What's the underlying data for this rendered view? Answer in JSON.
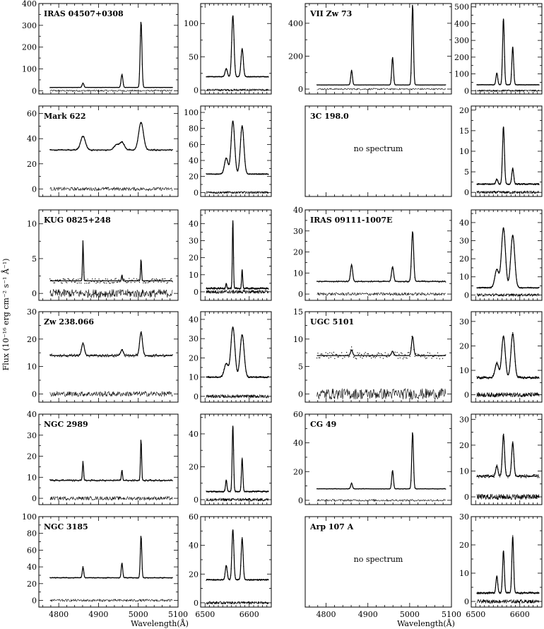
{
  "figure": {
    "ylabel": "Flux (10⁻¹⁶ erg cm⁻² s⁻¹ Å⁻¹)",
    "xlabel": "Wavelength(Å)"
  },
  "chart_data": [
    {
      "type": "line",
      "row": 0,
      "col": 0,
      "title": "IRAS 04507+0308",
      "xlim": [
        4750,
        5100
      ],
      "ylim": [
        -15,
        400
      ],
      "yticks": [
        0,
        100,
        200,
        300,
        400
      ],
      "xticks": [
        4800,
        4900,
        5000,
        5100
      ],
      "baseline": 15,
      "lines": [
        [
          4861,
          20
        ],
        [
          4959,
          60
        ],
        [
          5007,
          305
        ]
      ],
      "width": 2.2,
      "noise": 0.8
    },
    {
      "type": "line",
      "row": 0,
      "col": 1,
      "xlim": [
        6490,
        6650
      ],
      "ylim": [
        -6,
        130
      ],
      "yticks": [
        0,
        50,
        100
      ],
      "xticks": [
        6500,
        6600
      ],
      "baseline": 20,
      "lines": [
        [
          6548,
          12
        ],
        [
          6563,
          92
        ],
        [
          6584,
          42
        ]
      ],
      "width": 2.6,
      "noise": 0.5
    },
    {
      "type": "line",
      "row": 0,
      "col": 2,
      "title": "VII Zw 73",
      "xlim": [
        4750,
        5100
      ],
      "ylim": [
        -30,
        520
      ],
      "yticks": [
        0,
        200,
        400
      ],
      "xticks": [
        4800,
        4900,
        5000,
        5100
      ],
      "baseline": 25,
      "lines": [
        [
          4861,
          90
        ],
        [
          4959,
          170
        ],
        [
          5007,
          495
        ]
      ],
      "width": 2.0,
      "noise": 1.0
    },
    {
      "type": "line",
      "row": 0,
      "col": 3,
      "xlim": [
        6490,
        6650
      ],
      "ylim": [
        -20,
        520
      ],
      "yticks": [
        0,
        100,
        200,
        300,
        400,
        500
      ],
      "xticks": [
        6500,
        6600
      ],
      "baseline": 35,
      "lines": [
        [
          6548,
          70
        ],
        [
          6563,
          395
        ],
        [
          6584,
          225
        ]
      ],
      "width": 2.0,
      "noise": 1.0
    },
    {
      "type": "line",
      "row": 1,
      "col": 0,
      "title": "Mark 622",
      "xlim": [
        4750,
        5100
      ],
      "ylim": [
        -6,
        66
      ],
      "yticks": [
        0,
        20,
        40,
        60
      ],
      "xticks": [
        4800,
        4900,
        5000,
        5100
      ],
      "baseline": 31,
      "lines": [
        [
          4861,
          11
        ],
        [
          4945,
          4
        ],
        [
          4959,
          6
        ],
        [
          5007,
          22
        ]
      ],
      "width": 6,
      "noise": 0.6
    },
    {
      "type": "line",
      "row": 1,
      "col": 1,
      "xlim": [
        6490,
        6650
      ],
      "ylim": [
        -5,
        108
      ],
      "yticks": [
        0,
        20,
        40,
        60,
        80,
        100
      ],
      "xticks": [
        6500,
        6600
      ],
      "baseline": 23,
      "lines": [
        [
          6548,
          20
        ],
        [
          6563,
          66
        ],
        [
          6584,
          60
        ]
      ],
      "width": 4,
      "noise": 0.5
    },
    {
      "type": "empty",
      "row": 1,
      "col": 2,
      "title": "3C 198.0",
      "note": "no spectrum"
    },
    {
      "type": "line",
      "row": 1,
      "col": 3,
      "xlim": [
        6490,
        6650
      ],
      "ylim": [
        -1,
        21
      ],
      "yticks": [
        0,
        5,
        10,
        15,
        20
      ],
      "xticks": [
        6500,
        6600
      ],
      "baseline": 2,
      "lines": [
        [
          6548,
          1.2
        ],
        [
          6563,
          14
        ],
        [
          6584,
          3.8
        ]
      ],
      "width": 2.2,
      "noise": 0.15
    },
    {
      "type": "line",
      "row": 2,
      "col": 0,
      "title": "KUG 0825+248",
      "xlim": [
        4750,
        5100
      ],
      "ylim": [
        -1,
        12
      ],
      "yticks": [
        0,
        5,
        10
      ],
      "xticks": [
        4800,
        4900,
        5000,
        5100
      ],
      "baseline": 1.8,
      "lines": [
        [
          4861,
          5.8
        ],
        [
          4959,
          0.9
        ],
        [
          5007,
          3.2
        ]
      ],
      "width": 1.2,
      "noise": 0.35
    },
    {
      "type": "line",
      "row": 2,
      "col": 1,
      "xlim": [
        6490,
        6650
      ],
      "ylim": [
        -5,
        48
      ],
      "yticks": [
        0,
        10,
        20,
        30,
        40
      ],
      "xticks": [
        6500,
        6600
      ],
      "baseline": 2,
      "lines": [
        [
          6548,
          3
        ],
        [
          6563,
          40
        ],
        [
          6584,
          11
        ]
      ],
      "width": 1.2,
      "noise": 0.5
    },
    {
      "type": "line",
      "row": 2,
      "col": 2,
      "title": "IRAS 09111-1007E",
      "xlim": [
        4750,
        5100
      ],
      "ylim": [
        -3,
        40
      ],
      "yticks": [
        0,
        10,
        20,
        30,
        40
      ],
      "xticks": [
        4800,
        4900,
        5000,
        5100
      ],
      "baseline": 6,
      "lines": [
        [
          4861,
          8
        ],
        [
          4959,
          7
        ],
        [
          5007,
          24
        ]
      ],
      "width": 2.5,
      "noise": 0.3
    },
    {
      "type": "line",
      "row": 2,
      "col": 3,
      "xlim": [
        6490,
        6650
      ],
      "ylim": [
        -3,
        47
      ],
      "yticks": [
        0,
        10,
        20,
        30,
        40
      ],
      "xticks": [
        6500,
        6600
      ],
      "baseline": 4,
      "lines": [
        [
          6548,
          10
        ],
        [
          6563,
          33
        ],
        [
          6584,
          29
        ]
      ],
      "width": 4.5,
      "noise": 0.3
    },
    {
      "type": "line",
      "row": 3,
      "col": 0,
      "title": "Zw 238.066",
      "xlim": [
        4750,
        5100
      ],
      "ylim": [
        -3,
        30
      ],
      "yticks": [
        0,
        10,
        20,
        30
      ],
      "xticks": [
        4800,
        4900,
        5000,
        5100
      ],
      "baseline": 14,
      "lines": [
        [
          4861,
          4.5
        ],
        [
          4959,
          2
        ],
        [
          5007,
          8.5
        ]
      ],
      "width": 3.5,
      "noise": 0.5
    },
    {
      "type": "line",
      "row": 3,
      "col": 1,
      "xlim": [
        6490,
        6650
      ],
      "ylim": [
        -3,
        44
      ],
      "yticks": [
        0,
        10,
        20,
        30,
        40
      ],
      "xticks": [
        6500,
        6600
      ],
      "baseline": 10,
      "lines": [
        [
          6548,
          7
        ],
        [
          6563,
          26
        ],
        [
          6584,
          22
        ]
      ],
      "width": 4.5,
      "noise": 0.4
    },
    {
      "type": "line",
      "row": 3,
      "col": 2,
      "title": "UGC 5101",
      "xlim": [
        4750,
        5100
      ],
      "ylim": [
        -1.5,
        15
      ],
      "yticks": [
        0,
        5,
        10,
        15
      ],
      "xticks": [
        4800,
        4900,
        5000,
        5100
      ],
      "baseline": 7,
      "lines": [
        [
          4861,
          1
        ],
        [
          4959,
          0.8
        ],
        [
          5007,
          3.5
        ]
      ],
      "width": 2.5,
      "noise": 0.6
    },
    {
      "type": "line",
      "row": 3,
      "col": 3,
      "xlim": [
        6490,
        6650
      ],
      "ylim": [
        -3,
        34
      ],
      "yticks": [
        0,
        10,
        20,
        30
      ],
      "xticks": [
        6500,
        6600
      ],
      "baseline": 7,
      "lines": [
        [
          6548,
          6
        ],
        [
          6563,
          17
        ],
        [
          6584,
          18
        ]
      ],
      "width": 4,
      "noise": 0.5
    },
    {
      "type": "line",
      "row": 4,
      "col": 0,
      "title": "NGC 2989",
      "xlim": [
        4750,
        5100
      ],
      "ylim": [
        -3,
        40
      ],
      "yticks": [
        0,
        10,
        20,
        30,
        40
      ],
      "xticks": [
        4800,
        4900,
        5000,
        5100
      ],
      "baseline": 8.5,
      "lines": [
        [
          4861,
          9
        ],
        [
          4959,
          5
        ],
        [
          5007,
          20
        ]
      ],
      "width": 1.4,
      "noise": 0.4
    },
    {
      "type": "line",
      "row": 4,
      "col": 1,
      "xlim": [
        6490,
        6650
      ],
      "ylim": [
        -3,
        52
      ],
      "yticks": [
        0,
        20,
        40
      ],
      "xticks": [
        6500,
        6600
      ],
      "baseline": 5,
      "lines": [
        [
          6548,
          7
        ],
        [
          6563,
          40
        ],
        [
          6584,
          20
        ]
      ],
      "width": 1.6,
      "noise": 0.4
    },
    {
      "type": "line",
      "row": 4,
      "col": 2,
      "title": "CG 49",
      "xlim": [
        4750,
        5100
      ],
      "ylim": [
        -3,
        60
      ],
      "yticks": [
        0,
        20,
        40,
        60
      ],
      "xticks": [
        4800,
        4900,
        5000,
        5100
      ],
      "baseline": 8,
      "lines": [
        [
          4861,
          4
        ],
        [
          4959,
          13
        ],
        [
          5007,
          40
        ]
      ],
      "width": 2.0,
      "noise": 0.2
    },
    {
      "type": "line",
      "row": 4,
      "col": 3,
      "xlim": [
        6490,
        6650
      ],
      "ylim": [
        -3,
        32
      ],
      "yticks": [
        0,
        10,
        20,
        30
      ],
      "xticks": [
        6500,
        6600
      ],
      "baseline": 8,
      "lines": [
        [
          6548,
          4
        ],
        [
          6563,
          16
        ],
        [
          6584,
          13
        ]
      ],
      "width": 2.5,
      "noise": 0.6
    },
    {
      "type": "line",
      "row": 5,
      "col": 0,
      "title": "NGC 3185",
      "xlim": [
        4750,
        5100
      ],
      "ylim": [
        -8,
        100
      ],
      "yticks": [
        0,
        20,
        40,
        60,
        80,
        100
      ],
      "xticks": [
        4800,
        4900,
        5000,
        5100
      ],
      "xlabels": true,
      "baseline": 27,
      "lines": [
        [
          4861,
          13
        ],
        [
          4959,
          18
        ],
        [
          5007,
          51
        ]
      ],
      "width": 1.8,
      "noise": 0.5
    },
    {
      "type": "line",
      "row": 5,
      "col": 1,
      "xlim": [
        6490,
        6650
      ],
      "ylim": [
        -3,
        60
      ],
      "yticks": [
        0,
        20,
        40,
        60
      ],
      "xticks": [
        6500,
        6600
      ],
      "xlabels": true,
      "baseline": 16,
      "lines": [
        [
          6548,
          10
        ],
        [
          6563,
          35
        ],
        [
          6584,
          29
        ]
      ],
      "width": 2.2,
      "noise": 0.4
    },
    {
      "type": "empty",
      "row": 5,
      "col": 2,
      "title": "Arp 107 A",
      "note": "no spectrum",
      "xlim": [
        4750,
        5100
      ],
      "xticks": [
        4800,
        4900,
        5000,
        5100
      ],
      "xlabels": true
    },
    {
      "type": "line",
      "row": 5,
      "col": 3,
      "xlim": [
        6490,
        6650
      ],
      "ylim": [
        -2,
        30
      ],
      "yticks": [
        0,
        10,
        20,
        30
      ],
      "xticks": [
        6500,
        6600
      ],
      "xlabels": true,
      "baseline": 3,
      "lines": [
        [
          6548,
          6
        ],
        [
          6563,
          15
        ],
        [
          6584,
          20
        ]
      ],
      "width": 2.0,
      "noise": 0.3
    }
  ]
}
